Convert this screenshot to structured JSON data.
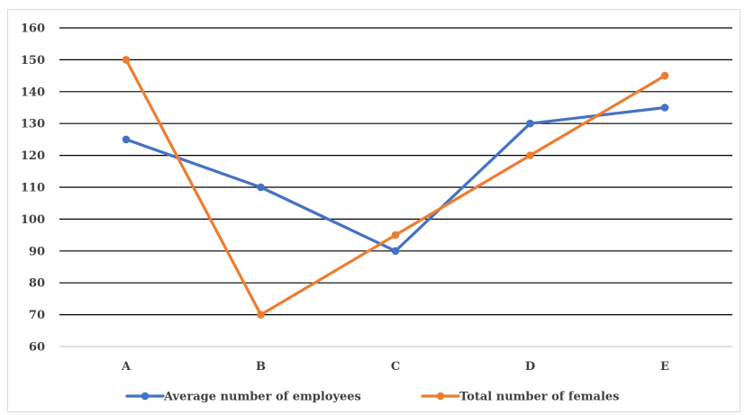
{
  "chart_data": {
    "type": "line",
    "title": "",
    "xlabel": "",
    "ylabel": "",
    "categories": [
      "A",
      "B",
      "C",
      "D",
      "E"
    ],
    "ylim": [
      60,
      160
    ],
    "yticks": [
      60,
      70,
      80,
      90,
      100,
      110,
      120,
      130,
      140,
      150,
      160
    ],
    "grid": true,
    "legend_position": "bottom",
    "series": [
      {
        "name": "Average number of employees",
        "values": [
          125,
          110,
          90,
          130,
          135
        ],
        "color": "#4472c4"
      },
      {
        "name": "Total number of females",
        "values": [
          150,
          70,
          95,
          120,
          145
        ],
        "color": "#ed7d31"
      }
    ]
  }
}
